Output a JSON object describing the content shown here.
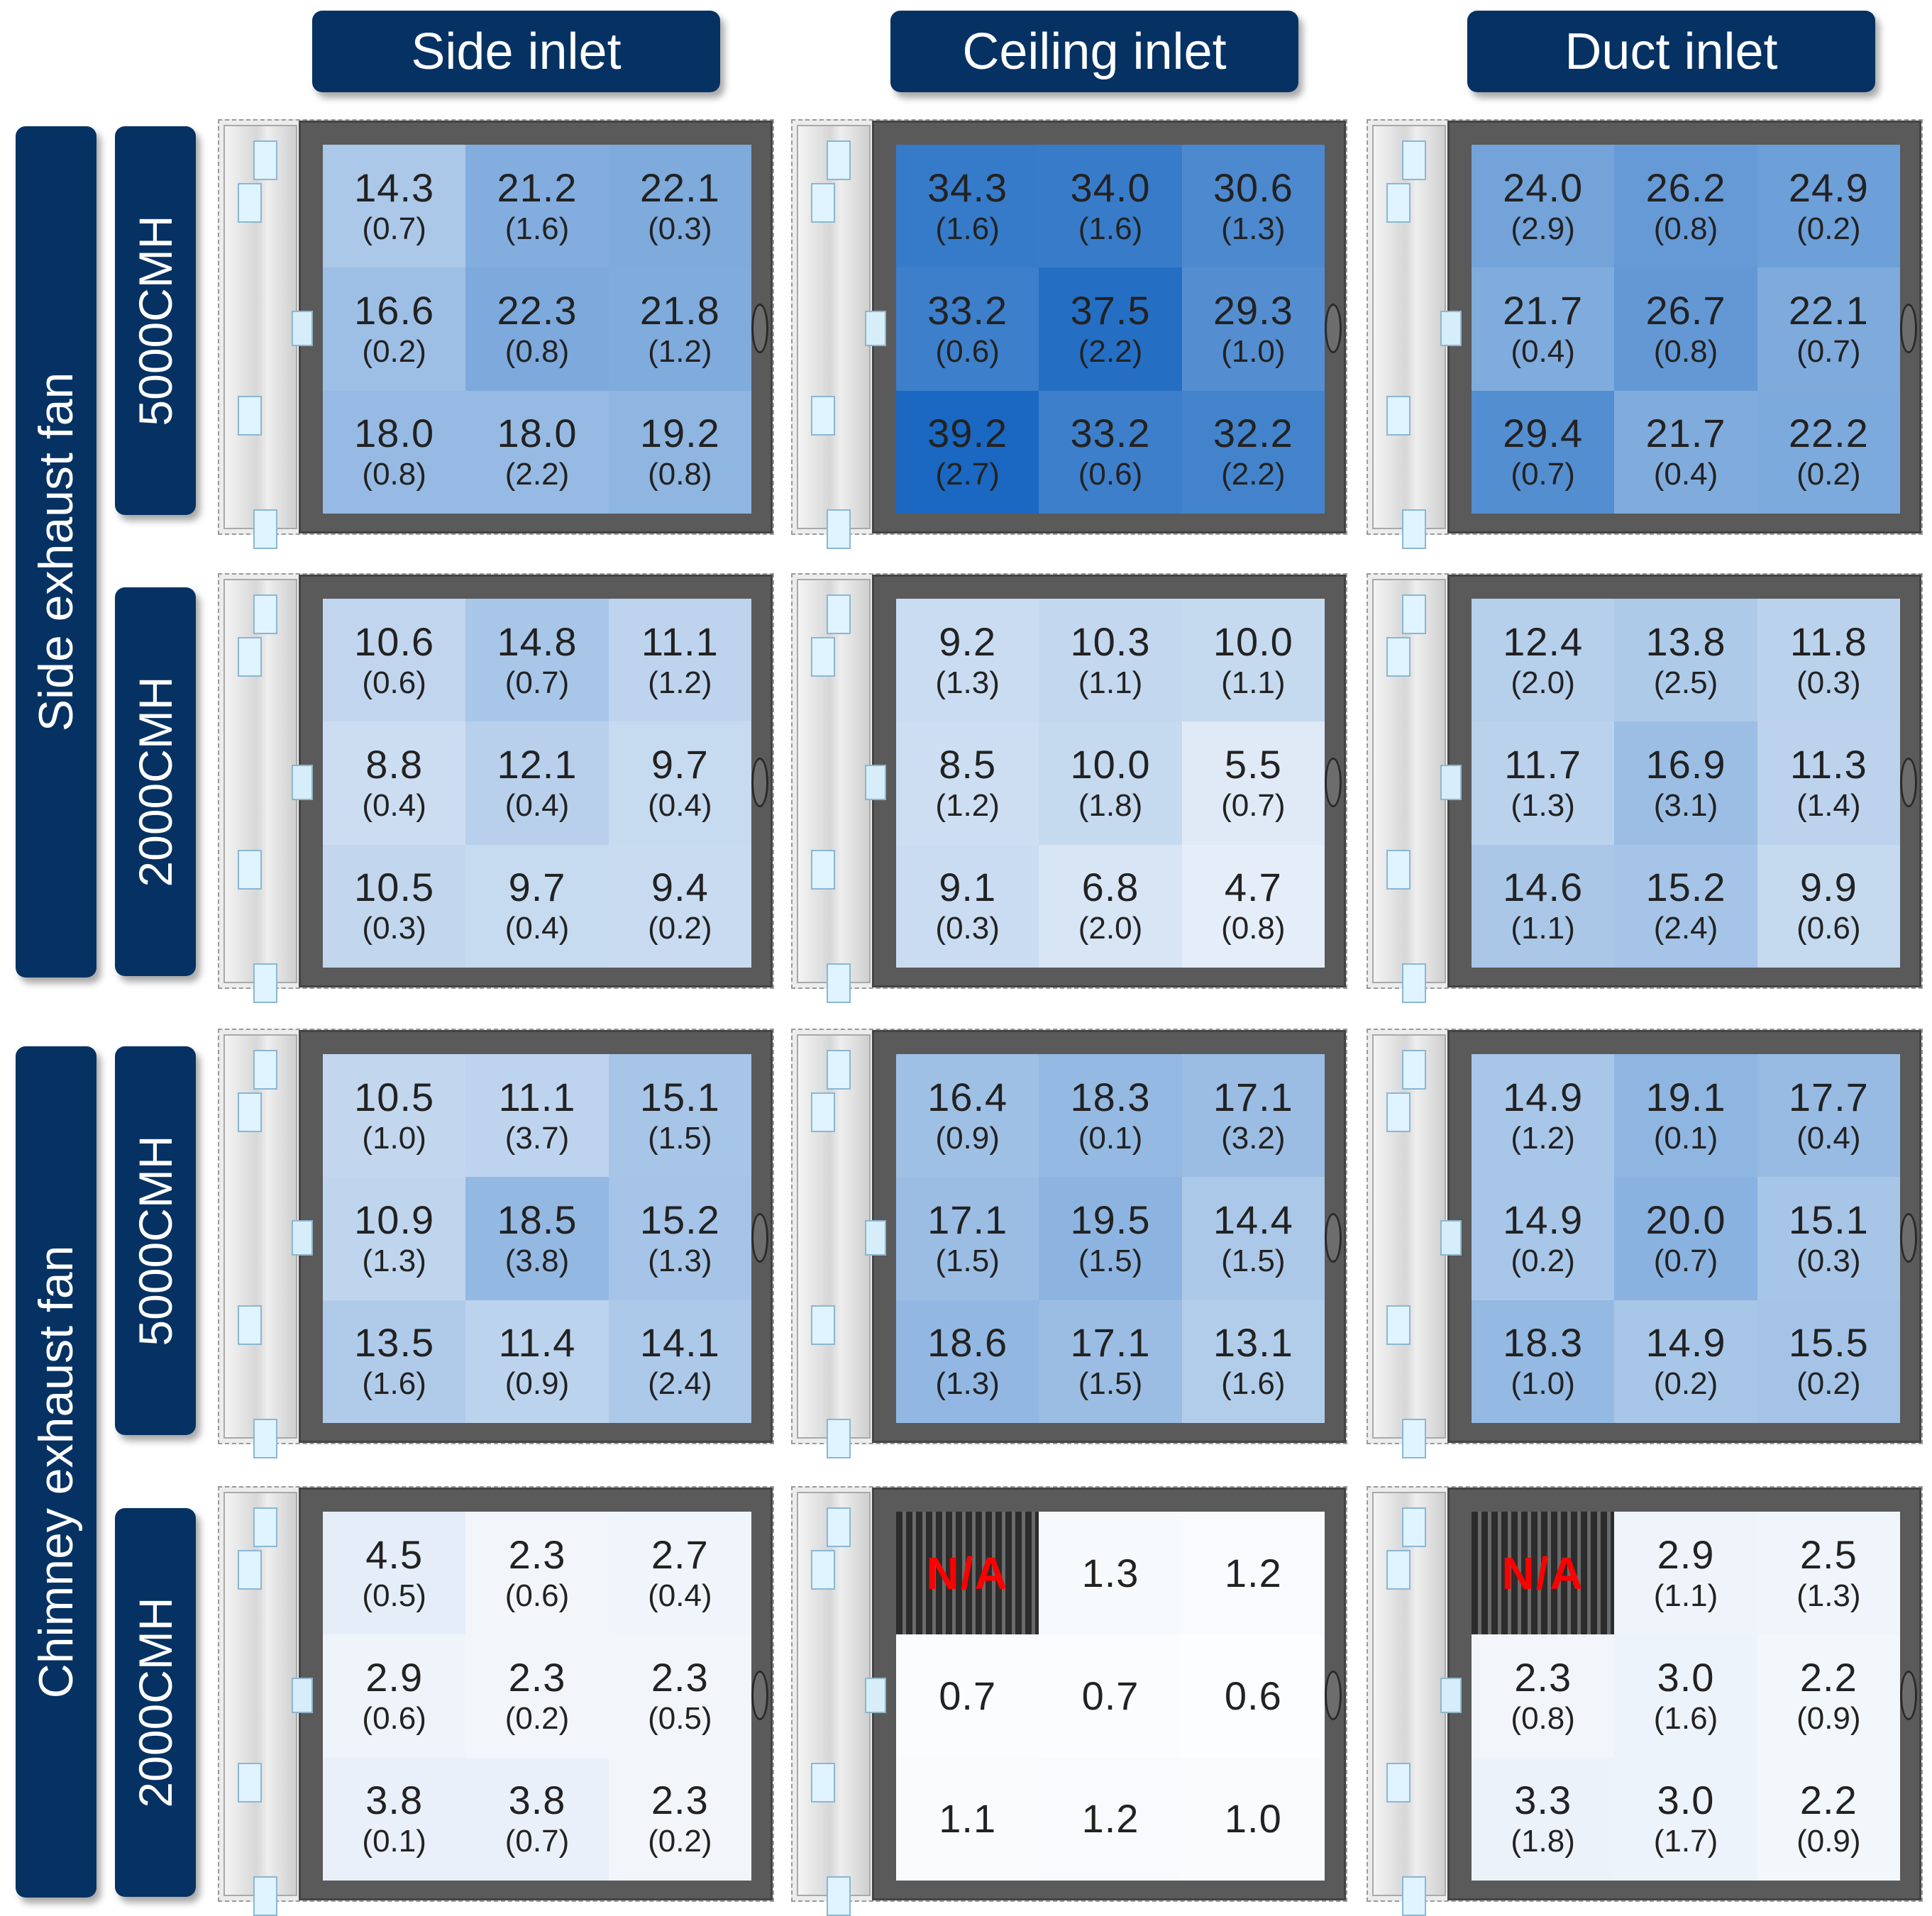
{
  "chart_data": {
    "type": "heatmap",
    "columns": [
      "Side inlet",
      "Ceiling inlet",
      "Duct inlet"
    ],
    "row_groups": [
      {
        "label": "Side exhaust fan",
        "rows": [
          "5000CMH",
          "2000CMH"
        ]
      },
      {
        "label": "Chimney exhaust fan",
        "rows": [
          "5000CMH",
          "2000CMH"
        ]
      }
    ],
    "na_label": "N/A",
    "color_scale": {
      "min_color": "#ffffff",
      "max_color": "#1565c0",
      "max_value": 40
    },
    "panels": [
      [
        {
          "mean": [
            [
              14.3,
              21.2,
              22.1
            ],
            [
              16.6,
              22.3,
              21.8
            ],
            [
              18.0,
              18.0,
              19.2
            ]
          ],
          "sd": [
            [
              "(0.7)",
              "(1.6)",
              "(0.3)"
            ],
            [
              "(0.2)",
              "(0.8)",
              "(1.2)"
            ],
            [
              "(0.8)",
              "(2.2)",
              "(0.8)"
            ]
          ]
        },
        {
          "mean": [
            [
              34.3,
              34.0,
              30.6
            ],
            [
              33.2,
              37.5,
              29.3
            ],
            [
              39.2,
              33.2,
              32.2
            ]
          ],
          "sd": [
            [
              "(1.6)",
              "(1.6)",
              "(1.3)"
            ],
            [
              "(0.6)",
              "(2.2)",
              "(1.0)"
            ],
            [
              "(2.7)",
              "(0.6)",
              "(2.2)"
            ]
          ]
        },
        {
          "mean": [
            [
              24.0,
              26.2,
              24.9
            ],
            [
              21.7,
              26.7,
              22.1
            ],
            [
              29.4,
              21.7,
              22.2
            ]
          ],
          "sd": [
            [
              "(2.9)",
              "(0.8)",
              "(0.2)"
            ],
            [
              "(0.4)",
              "(0.8)",
              "(0.7)"
            ],
            [
              "(0.7)",
              "(0.4)",
              "(0.2)"
            ]
          ]
        }
      ],
      [
        {
          "mean": [
            [
              10.6,
              14.8,
              11.1
            ],
            [
              8.8,
              12.1,
              9.7
            ],
            [
              10.5,
              9.7,
              9.4
            ]
          ],
          "sd": [
            [
              "(0.6)",
              "(0.7)",
              "(1.2)"
            ],
            [
              "(0.4)",
              "(0.4)",
              "(0.4)"
            ],
            [
              "(0.3)",
              "(0.4)",
              "(0.2)"
            ]
          ]
        },
        {
          "mean": [
            [
              9.2,
              10.3,
              10.0
            ],
            [
              8.5,
              10.0,
              5.5
            ],
            [
              9.1,
              6.8,
              4.7
            ]
          ],
          "sd": [
            [
              "(1.3)",
              "(1.1)",
              "(1.1)"
            ],
            [
              "(1.2)",
              "(1.8)",
              "(0.7)"
            ],
            [
              "(0.3)",
              "(2.0)",
              "(0.8)"
            ]
          ]
        },
        {
          "mean": [
            [
              12.4,
              13.8,
              11.8
            ],
            [
              11.7,
              16.9,
              11.3
            ],
            [
              14.6,
              15.2,
              9.9
            ]
          ],
          "sd": [
            [
              "(2.0)",
              "(2.5)",
              "(0.3)"
            ],
            [
              "(1.3)",
              "(3.1)",
              "(1.4)"
            ],
            [
              "(1.1)",
              "(2.4)",
              "(0.6)"
            ]
          ]
        }
      ],
      [
        {
          "mean": [
            [
              10.5,
              11.1,
              15.1
            ],
            [
              10.9,
              18.5,
              15.2
            ],
            [
              13.5,
              11.4,
              14.1
            ]
          ],
          "sd": [
            [
              "(1.0)",
              "(3.7)",
              "(1.5)"
            ],
            [
              "(1.3)",
              "(3.8)",
              "(1.3)"
            ],
            [
              "(1.6)",
              "(0.9)",
              "(2.4)"
            ]
          ]
        },
        {
          "mean": [
            [
              16.4,
              18.3,
              17.1
            ],
            [
              17.1,
              19.5,
              14.4
            ],
            [
              18.6,
              17.1,
              13.1
            ]
          ],
          "sd": [
            [
              "(0.9)",
              "(0.1)",
              "(3.2)"
            ],
            [
              "(1.5)",
              "(1.5)",
              "(1.5)"
            ],
            [
              "(1.3)",
              "(1.5)",
              "(1.6)"
            ]
          ]
        },
        {
          "mean": [
            [
              14.9,
              19.1,
              17.7
            ],
            [
              14.9,
              20.0,
              15.1
            ],
            [
              18.3,
              14.9,
              15.5
            ]
          ],
          "sd": [
            [
              "(1.2)",
              "(0.1)",
              "(0.4)"
            ],
            [
              "(0.2)",
              "(0.7)",
              "(0.3)"
            ],
            [
              "(1.0)",
              "(0.2)",
              "(0.2)"
            ]
          ]
        }
      ],
      [
        {
          "mean": [
            [
              4.5,
              2.3,
              2.7
            ],
            [
              2.9,
              2.3,
              2.3
            ],
            [
              3.8,
              3.8,
              2.3
            ]
          ],
          "sd": [
            [
              "(0.5)",
              "(0.6)",
              "(0.4)"
            ],
            [
              "(0.6)",
              "(0.2)",
              "(0.5)"
            ],
            [
              "(0.1)",
              "(0.7)",
              "(0.2)"
            ]
          ]
        },
        {
          "mean": [
            [
              null,
              1.3,
              1.2
            ],
            [
              0.7,
              0.7,
              0.6
            ],
            [
              1.1,
              1.2,
              1.0
            ]
          ],
          "sd": [
            [
              null,
              null,
              null
            ],
            [
              null,
              null,
              null
            ],
            [
              null,
              null,
              null
            ]
          ]
        },
        {
          "mean": [
            [
              null,
              2.9,
              2.5
            ],
            [
              2.3,
              3.0,
              2.2
            ],
            [
              3.3,
              3.0,
              2.2
            ]
          ],
          "sd": [
            [
              null,
              "(1.1)",
              "(1.3)"
            ],
            [
              "(0.8)",
              "(1.6)",
              "(0.9)"
            ],
            [
              "(1.8)",
              "(1.7)",
              "(0.9)"
            ]
          ]
        }
      ]
    ]
  }
}
